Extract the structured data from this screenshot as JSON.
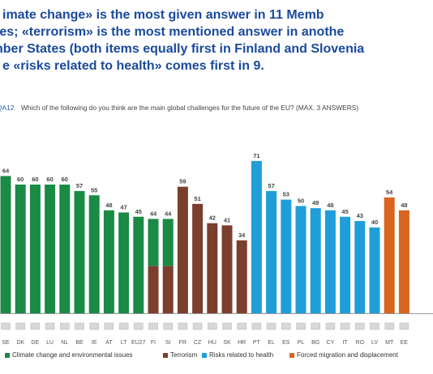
{
  "headline": {
    "line1": "imate change» is the most given answer in 11 Memb",
    "line2": "tes; «terrorism» is the most mentioned answer in anothe",
    "line3": "nber States (both items equally first in Finland and Slovenia",
    "line4": "e «risks related to health» comes first in 9."
  },
  "question": {
    "id": "QA12",
    "text": "Which of the following do you think are the main global challenges for the future of the EU? (MAX. 3 ANSWERS)"
  },
  "colors": {
    "climate": "#1a8a45",
    "terrorism": "#7b3f2e",
    "health": "#1f9ed8",
    "migration": "#d9651e"
  },
  "chart_data": {
    "type": "bar",
    "categories": [
      "SE",
      "DK",
      "DE",
      "LU",
      "NL",
      "BE",
      "IE",
      "AT",
      "LT",
      "EU27",
      "FI",
      "SI",
      "FR",
      "CZ",
      "HU",
      "SK",
      "HR",
      "PT",
      "EL",
      "ES",
      "PL",
      "BG",
      "CY",
      "IT",
      "RO",
      "LV",
      "MT",
      "EE"
    ],
    "values": [
      64,
      60,
      60,
      60,
      60,
      57,
      55,
      48,
      47,
      45,
      44,
      44,
      59,
      51,
      42,
      41,
      34,
      71,
      57,
      53,
      50,
      49,
      48,
      45,
      43,
      40,
      54,
      48
    ],
    "groups": [
      "climate",
      "climate",
      "climate",
      "climate",
      "climate",
      "climate",
      "climate",
      "climate",
      "climate",
      "climate",
      "climate",
      "climate",
      "terrorism",
      "terrorism",
      "terrorism",
      "terrorism",
      "terrorism",
      "health",
      "health",
      "health",
      "health",
      "health",
      "health",
      "health",
      "health",
      "health",
      "migration",
      "migration"
    ],
    "split_bars": [
      {
        "category": "FI",
        "lower_color": "terrorism"
      },
      {
        "category": "SI",
        "lower_color": "terrorism"
      }
    ],
    "legend": [
      {
        "key": "climate",
        "label": "Climate change and environmental issues"
      },
      {
        "key": "terrorism",
        "label": "Terrorism"
      },
      {
        "key": "health",
        "label": "Risks related to health"
      },
      {
        "key": "migration",
        "label": "Forced migration and displacement"
      }
    ]
  }
}
